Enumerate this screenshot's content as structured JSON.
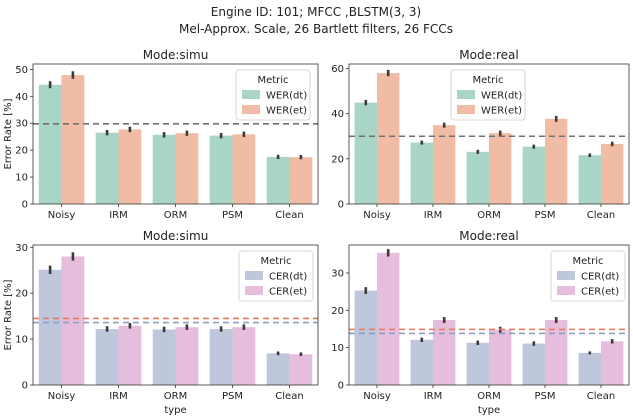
{
  "figure": {
    "title_line1": "Engine ID: 101; MFCC ,BLSTM(3, 3)",
    "title_line2": "Mel-Approx. Scale, 26 Bartlett filters, 26 FCCs"
  },
  "chart_data": [
    {
      "type": "bar",
      "title": "Mode:simu",
      "xlabel": "",
      "ylabel": "Error Rate [%]",
      "ylim": [
        0,
        52
      ],
      "yticks": [
        0,
        10,
        20,
        30,
        40,
        50
      ],
      "categories": [
        "Noisy",
        "IRM",
        "ORM",
        "PSM",
        "Clean"
      ],
      "legend_title": "Metric",
      "legend_position": "top-right",
      "series": [
        {
          "name": "WER(dt)",
          "color": "#a8d5c5",
          "values": [
            44.3,
            26.5,
            25.7,
            25.4,
            17.5
          ],
          "err": [
            1.3,
            1.0,
            1.0,
            1.0,
            0.8
          ]
        },
        {
          "name": "WER(et)",
          "color": "#f1bca6",
          "values": [
            47.9,
            27.7,
            26.3,
            25.9,
            17.4
          ],
          "err": [
            1.4,
            1.0,
            1.0,
            1.0,
            0.8
          ]
        }
      ],
      "hlines": [
        {
          "y": 29.8,
          "color": "#707070"
        }
      ]
    },
    {
      "type": "bar",
      "title": "Mode:real",
      "xlabel": "",
      "ylabel": "",
      "ylim": [
        0,
        62
      ],
      "yticks": [
        0,
        20,
        40,
        60
      ],
      "categories": [
        "Noisy",
        "IRM",
        "ORM",
        "PSM",
        "Clean"
      ],
      "legend_title": "Metric",
      "legend_position": "top-center",
      "series": [
        {
          "name": "WER(dt)",
          "color": "#a8d5c5",
          "values": [
            44.9,
            27.2,
            23.1,
            25.4,
            21.6
          ],
          "err": [
            1.2,
            0.9,
            0.9,
            0.9,
            0.8
          ]
        },
        {
          "name": "WER(et)",
          "color": "#f1bca6",
          "values": [
            58.0,
            34.9,
            31.4,
            37.7,
            26.6
          ],
          "err": [
            1.4,
            1.1,
            1.1,
            1.3,
            1.0
          ]
        }
      ],
      "hlines": [
        {
          "y": 30.0,
          "color": "#707070"
        }
      ]
    },
    {
      "type": "bar",
      "title": "Mode:simu",
      "xlabel": "type",
      "ylabel": "Error Rate [%]",
      "ylim": [
        0,
        30.5
      ],
      "yticks": [
        0,
        10,
        20,
        30
      ],
      "categories": [
        "Noisy",
        "IRM",
        "ORM",
        "PSM",
        "Clean"
      ],
      "legend_title": "Metric",
      "legend_position": "top-right",
      "series": [
        {
          "name": "CER(dt)",
          "color": "#bfc7dd",
          "values": [
            25.1,
            12.2,
            12.1,
            12.2,
            6.9
          ],
          "err": [
            0.9,
            0.6,
            0.6,
            0.6,
            0.4
          ]
        },
        {
          "name": "CER(et)",
          "color": "#e6bddc",
          "values": [
            28.0,
            12.9,
            12.6,
            12.6,
            6.7
          ],
          "err": [
            0.9,
            0.6,
            0.6,
            0.6,
            0.4
          ]
        }
      ],
      "hlines": [
        {
          "y": 14.5,
          "color": "#e07a5f"
        },
        {
          "y": 13.6,
          "color": "#8fa0c0"
        }
      ]
    },
    {
      "type": "bar",
      "title": "Mode:real",
      "xlabel": "type",
      "ylabel": "",
      "ylim": [
        0,
        37.5
      ],
      "yticks": [
        0,
        10,
        20,
        30
      ],
      "categories": [
        "Noisy",
        "IRM",
        "ORM",
        "PSM",
        "Clean"
      ],
      "legend_title": "Metric",
      "legend_position": "top-right",
      "series": [
        {
          "name": "CER(dt)",
          "color": "#bfc7dd",
          "values": [
            25.3,
            12.1,
            11.3,
            11.1,
            8.6
          ],
          "err": [
            0.9,
            0.6,
            0.6,
            0.6,
            0.4
          ]
        },
        {
          "name": "CER(et)",
          "color": "#e6bddc",
          "values": [
            35.4,
            17.4,
            14.8,
            17.4,
            11.7
          ],
          "err": [
            1.0,
            0.8,
            0.8,
            0.8,
            0.6
          ]
        }
      ],
      "hlines": [
        {
          "y": 14.9,
          "color": "#e07a5f"
        },
        {
          "y": 13.8,
          "color": "#8fa0c0"
        }
      ]
    }
  ]
}
